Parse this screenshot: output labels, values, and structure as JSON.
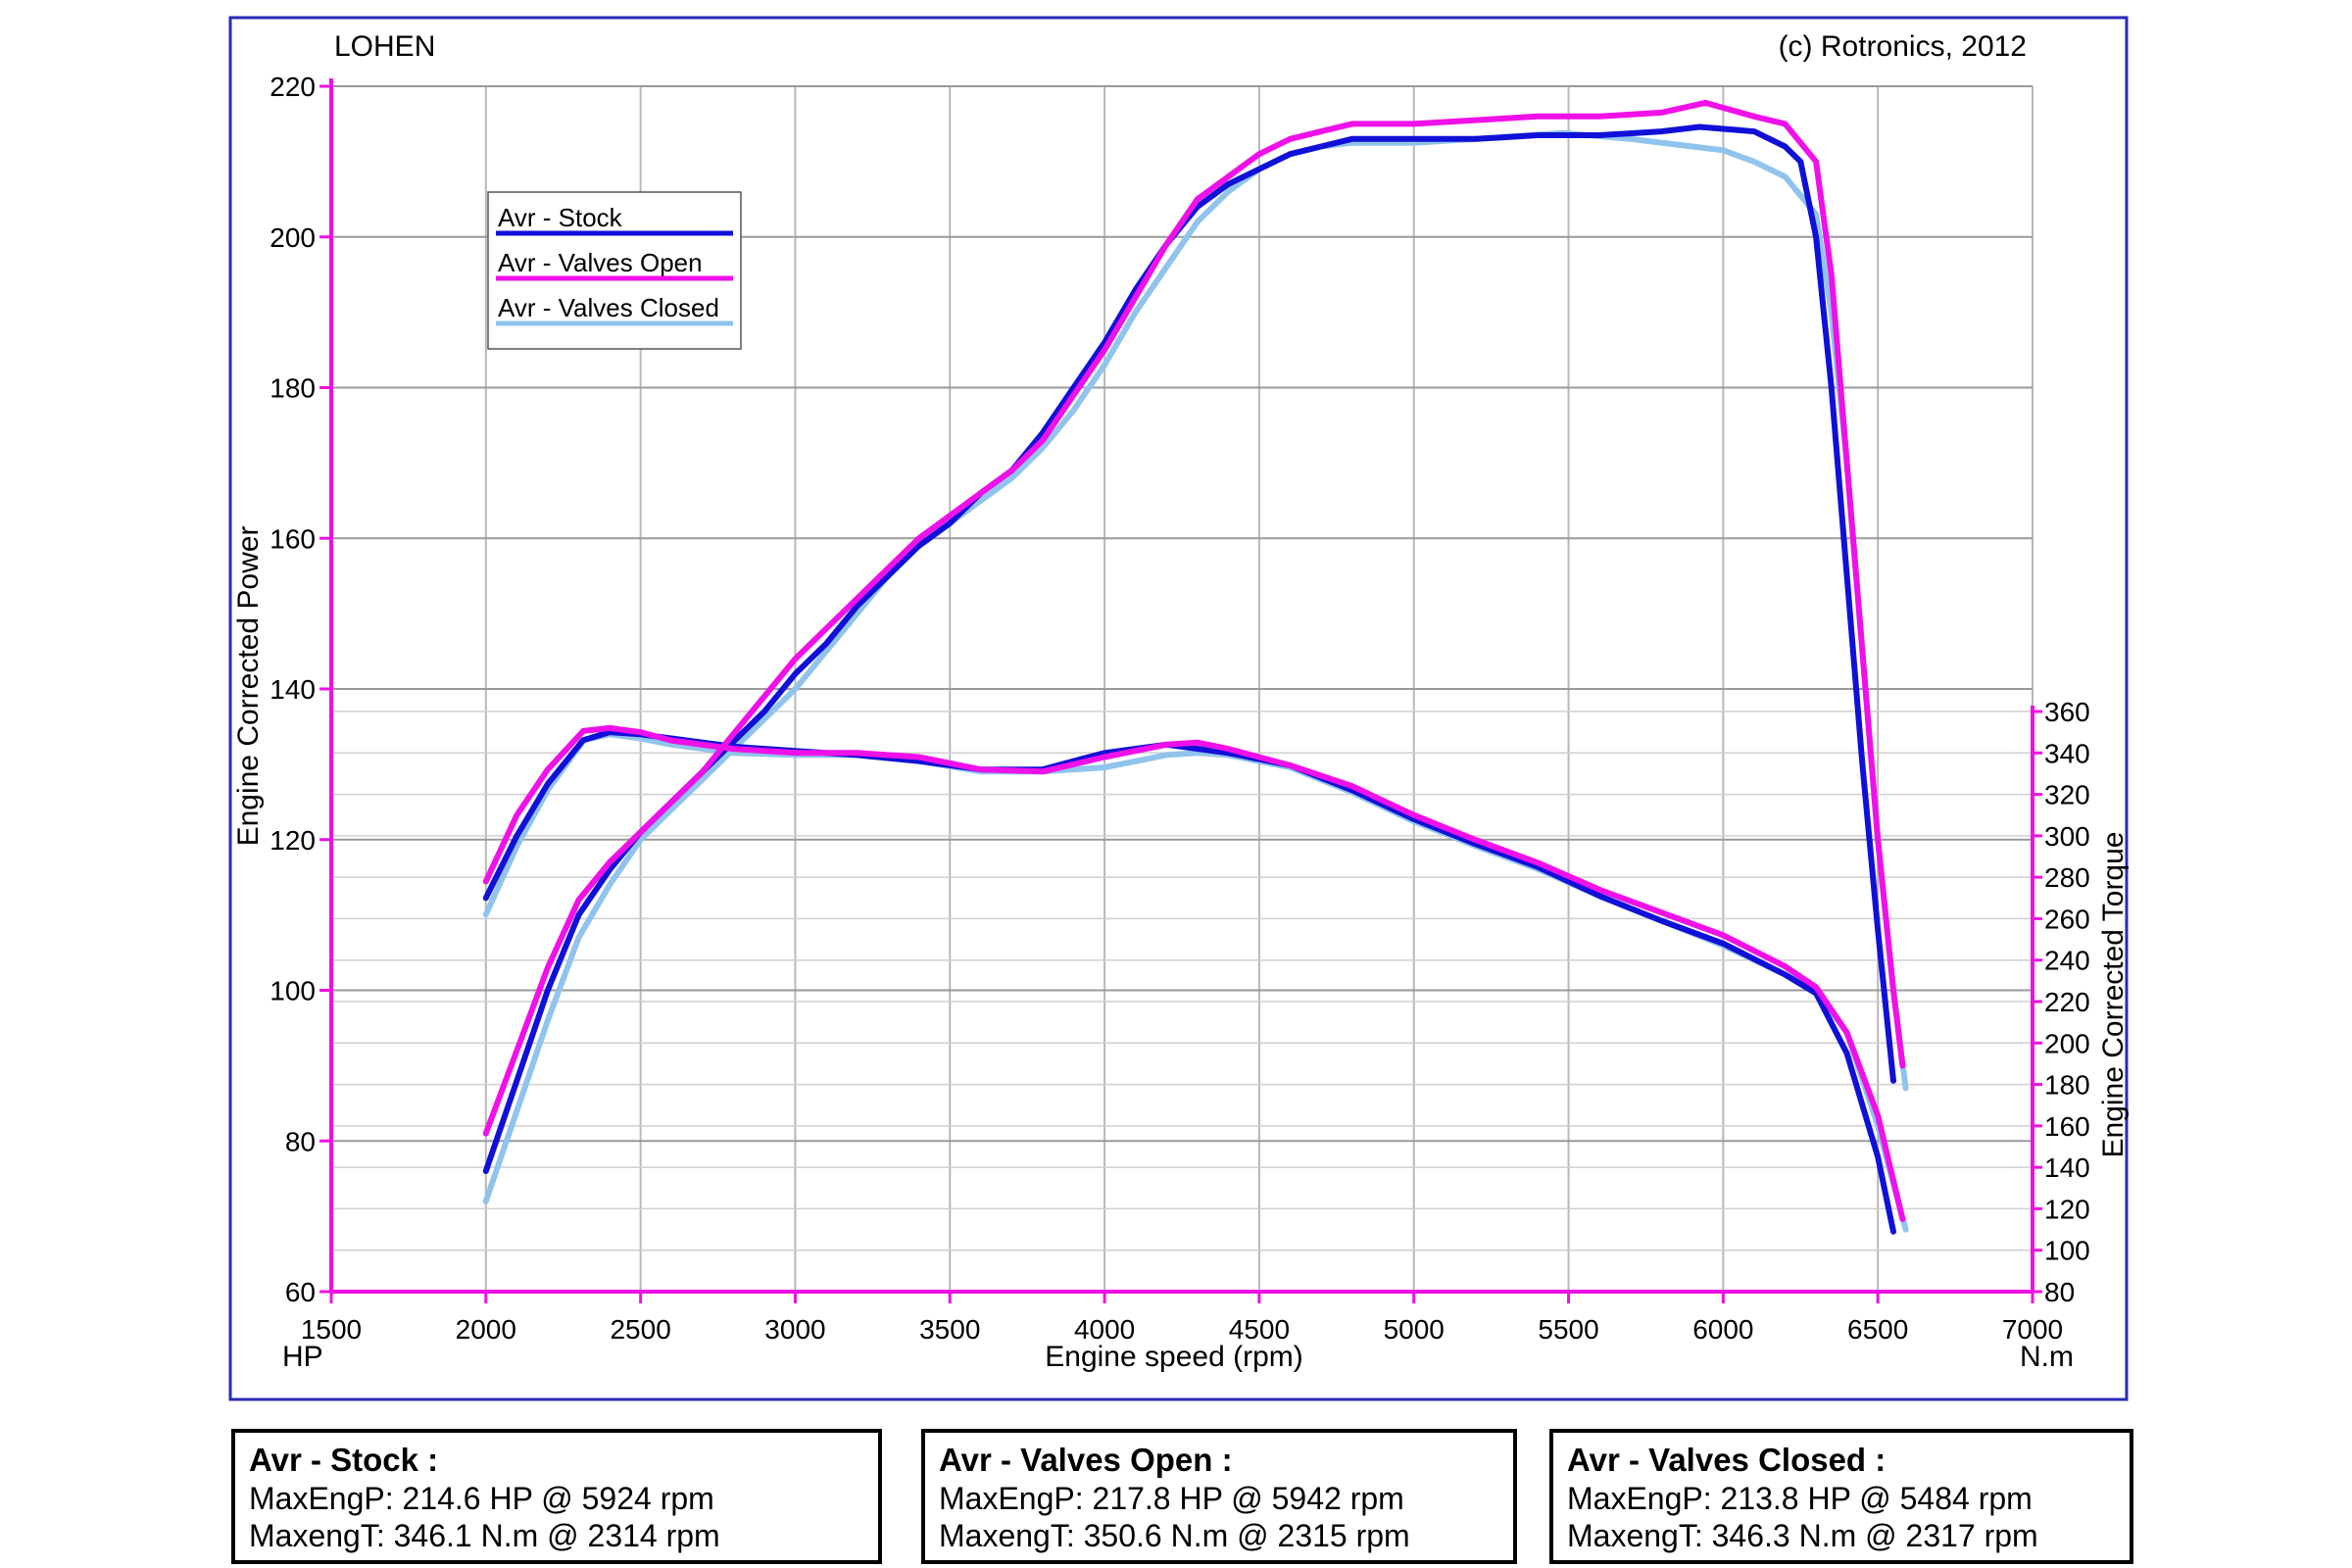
{
  "header": {
    "left": "LOHEN",
    "right": "(c) Rotronics, 2012"
  },
  "axes": {
    "y_left_title": "Engine Corrected Power",
    "y_right_title": "Engine Corrected Torque",
    "x_title": "Engine speed (rpm)",
    "unit_left": "HP",
    "unit_right": "N.m"
  },
  "legend": [
    {
      "label": "Avr - Stock",
      "color": "#1010d8"
    },
    {
      "label": "Avr - Valves Open",
      "color": "#f010e8"
    },
    {
      "label": "Avr - Valves Closed",
      "color": "#90c4ec"
    }
  ],
  "summaries": [
    {
      "title": "Avr - Stock :",
      "line1": "MaxEngP: 214.6 HP @ 5924 rpm",
      "line2": "MaxengT: 346.1 N.m @ 2314 rpm"
    },
    {
      "title": "Avr - Valves Open :",
      "line1": "MaxEngP: 217.8 HP @ 5942 rpm",
      "line2": "MaxengT: 350.6 N.m @ 2315 rpm"
    },
    {
      "title": "Avr - Valves Closed :",
      "line1": "MaxEngP: 213.8 HP @ 5484 rpm",
      "line2": "MaxengT: 346.3 N.m @ 2317 rpm"
    }
  ],
  "chart_data": {
    "type": "line",
    "title": "",
    "xlabel": "Engine speed (rpm)",
    "ylabel": "Engine Corrected Power",
    "ylabel_right": "Engine Corrected Torque",
    "xlim": [
      1500,
      7000
    ],
    "ylim": [
      60,
      220
    ],
    "ylim_right": [
      80,
      360
    ],
    "x_ticks": [
      1500,
      2000,
      2500,
      3000,
      3500,
      4000,
      4500,
      5000,
      5500,
      6000,
      6500,
      7000
    ],
    "y_ticks": [
      60,
      80,
      100,
      120,
      140,
      160,
      180,
      200,
      220
    ],
    "y_ticks_right": [
      80,
      100,
      120,
      140,
      160,
      180,
      200,
      220,
      240,
      260,
      280,
      300,
      320,
      340,
      360
    ],
    "grid": true,
    "legend_position": "top-left",
    "series": [
      {
        "name": "Avr - Stock",
        "quantity": "power",
        "axis": "left",
        "color": "#1010d8",
        "points": [
          [
            2000,
            76
          ],
          [
            2100,
            88
          ],
          [
            2200,
            100
          ],
          [
            2300,
            110
          ],
          [
            2400,
            116
          ],
          [
            2500,
            121
          ],
          [
            2600,
            125
          ],
          [
            2700,
            129
          ],
          [
            2800,
            133
          ],
          [
            2900,
            137
          ],
          [
            3000,
            142
          ],
          [
            3100,
            146
          ],
          [
            3200,
            151
          ],
          [
            3300,
            155
          ],
          [
            3400,
            159
          ],
          [
            3500,
            162
          ],
          [
            3600,
            166
          ],
          [
            3700,
            169
          ],
          [
            3800,
            174
          ],
          [
            3900,
            180
          ],
          [
            4000,
            186
          ],
          [
            4100,
            193
          ],
          [
            4200,
            199
          ],
          [
            4300,
            204
          ],
          [
            4400,
            207
          ],
          [
            4500,
            209
          ],
          [
            4600,
            211
          ],
          [
            4700,
            212
          ],
          [
            4800,
            213
          ],
          [
            5000,
            213
          ],
          [
            5200,
            213
          ],
          [
            5400,
            213.5
          ],
          [
            5600,
            213.5
          ],
          [
            5800,
            214
          ],
          [
            5924,
            214.6
          ],
          [
            6100,
            214
          ],
          [
            6200,
            212
          ],
          [
            6250,
            210
          ],
          [
            6300,
            200
          ],
          [
            6350,
            180
          ],
          [
            6400,
            155
          ],
          [
            6450,
            130
          ],
          [
            6500,
            108
          ],
          [
            6550,
            88
          ]
        ]
      },
      {
        "name": "Avr - Valves Open",
        "quantity": "power",
        "axis": "left",
        "color": "#f010e8",
        "points": [
          [
            2000,
            81
          ],
          [
            2100,
            92
          ],
          [
            2200,
            103
          ],
          [
            2300,
            112
          ],
          [
            2400,
            117
          ],
          [
            2500,
            121
          ],
          [
            2600,
            125
          ],
          [
            2700,
            129
          ],
          [
            2800,
            134
          ],
          [
            2900,
            139
          ],
          [
            3000,
            144
          ],
          [
            3100,
            148
          ],
          [
            3200,
            152
          ],
          [
            3300,
            156
          ],
          [
            3400,
            160
          ],
          [
            3500,
            163
          ],
          [
            3600,
            166
          ],
          [
            3700,
            169
          ],
          [
            3800,
            173
          ],
          [
            3900,
            179
          ],
          [
            4000,
            185
          ],
          [
            4100,
            192
          ],
          [
            4200,
            199
          ],
          [
            4300,
            205
          ],
          [
            4400,
            208
          ],
          [
            4500,
            211
          ],
          [
            4600,
            213
          ],
          [
            4700,
            214
          ],
          [
            4800,
            215
          ],
          [
            5000,
            215
          ],
          [
            5200,
            215.5
          ],
          [
            5400,
            216
          ],
          [
            5600,
            216
          ],
          [
            5800,
            216.5
          ],
          [
            5942,
            217.8
          ],
          [
            6100,
            216
          ],
          [
            6200,
            215
          ],
          [
            6300,
            210
          ],
          [
            6350,
            195
          ],
          [
            6400,
            170
          ],
          [
            6450,
            145
          ],
          [
            6500,
            120
          ],
          [
            6550,
            100
          ],
          [
            6580,
            90
          ]
        ]
      },
      {
        "name": "Avr - Valves Closed",
        "quantity": "power",
        "axis": "left",
        "color": "#90c4ec",
        "points": [
          [
            2000,
            72
          ],
          [
            2100,
            84
          ],
          [
            2200,
            96
          ],
          [
            2300,
            107
          ],
          [
            2400,
            114
          ],
          [
            2500,
            120
          ],
          [
            2600,
            124
          ],
          [
            2700,
            128
          ],
          [
            2800,
            132
          ],
          [
            2900,
            136
          ],
          [
            3000,
            140
          ],
          [
            3100,
            145
          ],
          [
            3200,
            150
          ],
          [
            3300,
            155
          ],
          [
            3400,
            159
          ],
          [
            3500,
            162
          ],
          [
            3600,
            165
          ],
          [
            3700,
            168
          ],
          [
            3800,
            172
          ],
          [
            3900,
            177
          ],
          [
            4000,
            183
          ],
          [
            4100,
            190
          ],
          [
            4200,
            196
          ],
          [
            4300,
            202
          ],
          [
            4400,
            206
          ],
          [
            4500,
            209
          ],
          [
            4600,
            211
          ],
          [
            4700,
            212
          ],
          [
            4800,
            212.5
          ],
          [
            5000,
            212.5
          ],
          [
            5200,
            213
          ],
          [
            5484,
            213.8
          ],
          [
            5700,
            213
          ],
          [
            5900,
            212
          ],
          [
            6000,
            211.5
          ],
          [
            6100,
            210
          ],
          [
            6200,
            208
          ],
          [
            6300,
            203
          ],
          [
            6350,
            190
          ],
          [
            6400,
            170
          ],
          [
            6450,
            145
          ],
          [
            6500,
            120
          ],
          [
            6550,
            100
          ],
          [
            6590,
            87
          ]
        ]
      },
      {
        "name": "Avr - Stock",
        "quantity": "torque",
        "axis": "right",
        "color": "#1010d8",
        "points": [
          [
            2000,
            270
          ],
          [
            2100,
            300
          ],
          [
            2200,
            325
          ],
          [
            2314,
            346.1
          ],
          [
            2400,
            350
          ],
          [
            2500,
            349
          ],
          [
            2600,
            347
          ],
          [
            2800,
            343
          ],
          [
            3000,
            341
          ],
          [
            3200,
            339
          ],
          [
            3400,
            336
          ],
          [
            3600,
            332
          ],
          [
            3800,
            332
          ],
          [
            3900,
            336
          ],
          [
            4000,
            340
          ],
          [
            4200,
            344
          ],
          [
            4400,
            340
          ],
          [
            4600,
            334
          ],
          [
            4800,
            322
          ],
          [
            5000,
            308
          ],
          [
            5200,
            296
          ],
          [
            5400,
            285
          ],
          [
            5600,
            271
          ],
          [
            5800,
            259
          ],
          [
            6000,
            248
          ],
          [
            6200,
            233
          ],
          [
            6300,
            224
          ],
          [
            6400,
            195
          ],
          [
            6500,
            145
          ],
          [
            6550,
            109
          ]
        ]
      },
      {
        "name": "Avr - Valves Open",
        "quantity": "torque",
        "axis": "right",
        "color": "#f010e8",
        "points": [
          [
            2000,
            278
          ],
          [
            2100,
            310
          ],
          [
            2200,
            332
          ],
          [
            2315,
            350.6
          ],
          [
            2400,
            352
          ],
          [
            2500,
            350
          ],
          [
            2600,
            346
          ],
          [
            2800,
            342
          ],
          [
            3000,
            340
          ],
          [
            3200,
            340
          ],
          [
            3400,
            338
          ],
          [
            3600,
            332
          ],
          [
            3800,
            331
          ],
          [
            4000,
            338
          ],
          [
            4200,
            344
          ],
          [
            4300,
            345
          ],
          [
            4400,
            342
          ],
          [
            4600,
            334
          ],
          [
            4800,
            324
          ],
          [
            5000,
            310
          ],
          [
            5200,
            298
          ],
          [
            5400,
            287
          ],
          [
            5600,
            274
          ],
          [
            5800,
            263
          ],
          [
            6000,
            252
          ],
          [
            6200,
            237
          ],
          [
            6300,
            227
          ],
          [
            6400,
            205
          ],
          [
            6500,
            165
          ],
          [
            6580,
            115
          ]
        ]
      },
      {
        "name": "Avr - Valves Closed",
        "quantity": "torque",
        "axis": "right",
        "color": "#90c4ec",
        "points": [
          [
            2000,
            262
          ],
          [
            2100,
            295
          ],
          [
            2200,
            322
          ],
          [
            2317,
            346.3
          ],
          [
            2400,
            349
          ],
          [
            2500,
            347
          ],
          [
            2600,
            344
          ],
          [
            2800,
            340
          ],
          [
            3000,
            339
          ],
          [
            3200,
            339
          ],
          [
            3400,
            336
          ],
          [
            3600,
            331
          ],
          [
            3800,
            331
          ],
          [
            4000,
            333
          ],
          [
            4200,
            339
          ],
          [
            4300,
            340
          ],
          [
            4400,
            339
          ],
          [
            4600,
            333
          ],
          [
            4800,
            321
          ],
          [
            5000,
            307
          ],
          [
            5200,
            295
          ],
          [
            5400,
            284
          ],
          [
            5600,
            271
          ],
          [
            5800,
            259
          ],
          [
            6000,
            247
          ],
          [
            6200,
            233
          ],
          [
            6300,
            225
          ],
          [
            6400,
            205
          ],
          [
            6500,
            160
          ],
          [
            6590,
            110
          ]
        ]
      }
    ]
  }
}
